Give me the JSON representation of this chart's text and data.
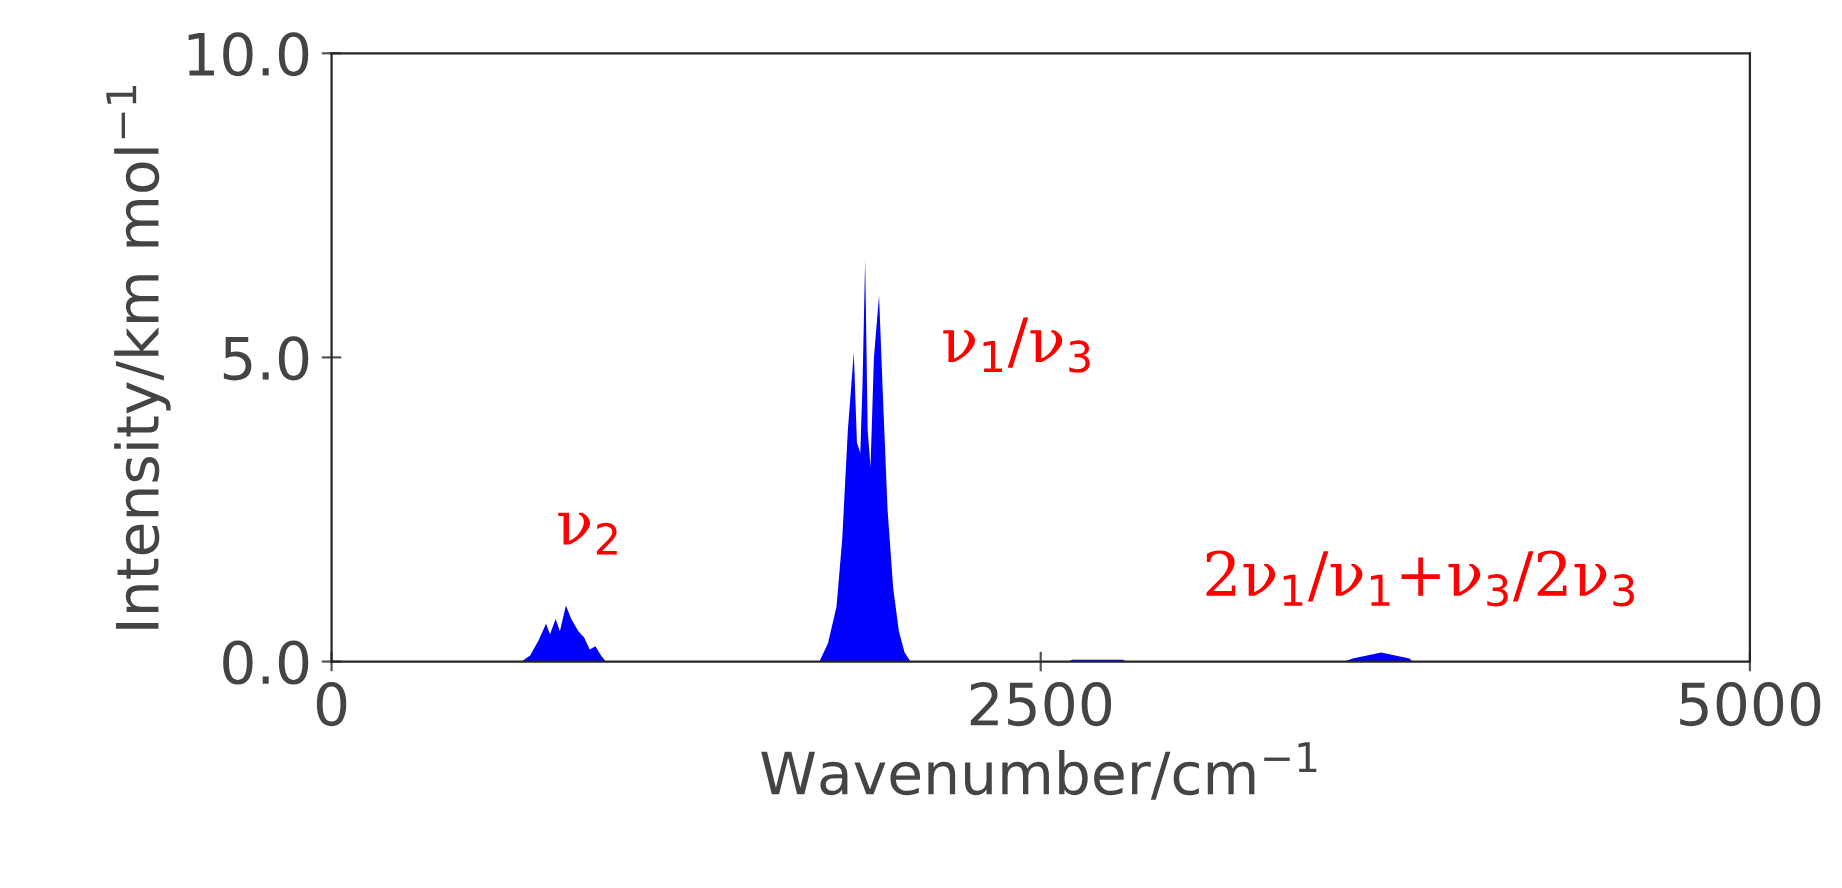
{
  "chart_data": {
    "type": "area",
    "xlabel": "Wavenumber/cm$^{−1}$",
    "ylabel": "Intensity/km mol$^{−1}$",
    "xlim": [
      0,
      5000
    ],
    "xticks": [
      0,
      2500,
      5000
    ],
    "ylim": [
      0,
      10
    ],
    "yticks": [
      {
        "value": 0,
        "label": "0.0"
      },
      {
        "value": 5,
        "label": "5.0"
      },
      {
        "value": 10,
        "label": "10.0"
      }
    ],
    "series": [
      {
        "color": "#0000ff",
        "x": [
          0,
          670,
          700,
          730,
          756,
          770,
          790,
          805,
          826,
          845,
          870,
          890,
          910,
          930,
          950,
          967,
          1720,
          1750,
          1780,
          1800,
          1820,
          1841,
          1852,
          1864,
          1872,
          1881,
          1890,
          1900,
          1912,
          1930,
          1945,
          1960,
          1980,
          2000,
          2020,
          2041,
          2600,
          2610,
          2790,
          2800,
          3570,
          3600,
          3650,
          3700,
          3750,
          3800,
          3810,
          5000
        ],
        "values": [
          0,
          0,
          0.1,
          0.35,
          0.62,
          0.45,
          0.7,
          0.5,
          0.92,
          0.7,
          0.5,
          0.4,
          0.2,
          0.25,
          0.1,
          0,
          0,
          0.3,
          0.9,
          2.0,
          3.8,
          5.08,
          3.6,
          3.43,
          4.6,
          6.61,
          3.8,
          3.2,
          5.0,
          6.02,
          4.2,
          2.5,
          1.2,
          0.5,
          0.15,
          0,
          0,
          0.03,
          0.03,
          0,
          0,
          0.05,
          0.1,
          0.15,
          0.1,
          0.05,
          0,
          0
        ]
      }
    ],
    "annotations": [
      "ν$_{2}$",
      "ν$_{1}$/ν$_{3}$",
      "2ν$_{1}$/ν$_{1}$+ν$_{3}$/2ν$_{3}$"
    ],
    "grid": false,
    "legend": false
  }
}
